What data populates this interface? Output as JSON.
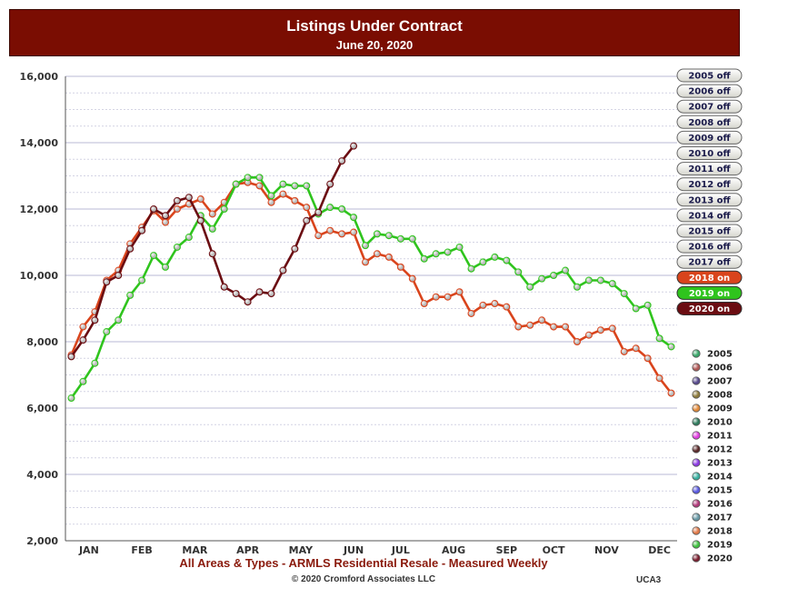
{
  "header": {
    "title": "Listings Under Contract",
    "subtitle": "June 20, 2020"
  },
  "footer": {
    "line1": "All Areas & Types - ARMLS Residential Resale - Measured Weekly",
    "line2": "© 2020 Cromford Associates LLC",
    "code": "UCA3"
  },
  "toggles": [
    {
      "label": "2005 off",
      "state": "off"
    },
    {
      "label": "2006 off",
      "state": "off"
    },
    {
      "label": "2007 off",
      "state": "off"
    },
    {
      "label": "2008 off",
      "state": "off"
    },
    {
      "label": "2009 off",
      "state": "off"
    },
    {
      "label": "2010 off",
      "state": "off"
    },
    {
      "label": "2011 off",
      "state": "off"
    },
    {
      "label": "2012 off",
      "state": "off"
    },
    {
      "label": "2013 off",
      "state": "off"
    },
    {
      "label": "2014 off",
      "state": "off"
    },
    {
      "label": "2015 off",
      "state": "off"
    },
    {
      "label": "2016 off",
      "state": "off"
    },
    {
      "label": "2017 off",
      "state": "off"
    },
    {
      "label": "2018 on",
      "state": "on",
      "color": "#d9441c"
    },
    {
      "label": "2019 on",
      "state": "on",
      "color": "#2fc41d"
    },
    {
      "label": "2020 on",
      "state": "on",
      "color": "#6b0d12"
    }
  ],
  "legend": [
    {
      "label": "2005",
      "color": "#3aa66a"
    },
    {
      "label": "2006",
      "color": "#b05a58"
    },
    {
      "label": "2007",
      "color": "#574a8c"
    },
    {
      "label": "2008",
      "color": "#8c7a3c"
    },
    {
      "label": "2009",
      "color": "#e08a3c"
    },
    {
      "label": "2010",
      "color": "#2f7a5c"
    },
    {
      "label": "2011",
      "color": "#e040e0"
    },
    {
      "label": "2012",
      "color": "#5a2a2a"
    },
    {
      "label": "2013",
      "color": "#8a3ae0"
    },
    {
      "label": "2014",
      "color": "#3ab0a0"
    },
    {
      "label": "2015",
      "color": "#5a5ae0"
    },
    {
      "label": "2016",
      "color": "#b03a7a"
    },
    {
      "label": "2017",
      "color": "#6a9aa6"
    },
    {
      "label": "2018",
      "color": "#e07a4a"
    },
    {
      "label": "2019",
      "color": "#40c040"
    },
    {
      "label": "2020",
      "color": "#7a2030"
    }
  ],
  "chart_data": {
    "type": "line",
    "ylim": [
      2000,
      16000
    ],
    "yticks": [
      2000,
      4000,
      6000,
      8000,
      10000,
      12000,
      14000,
      16000
    ],
    "ytick_labels": [
      "2,000",
      "4,000",
      "6,000",
      "8,000",
      "10,000",
      "12,000",
      "14,000",
      "16,000"
    ],
    "xlim": [
      1,
      52
    ],
    "months": [
      {
        "label": "JAN",
        "week": 2.5
      },
      {
        "label": "FEB",
        "week": 7
      },
      {
        "label": "MAR",
        "week": 11.5
      },
      {
        "label": "APR",
        "week": 16
      },
      {
        "label": "MAY",
        "week": 20.5
      },
      {
        "label": "JUN",
        "week": 25
      },
      {
        "label": "JUL",
        "week": 29
      },
      {
        "label": "AUG",
        "week": 33.5
      },
      {
        "label": "SEP",
        "week": 38
      },
      {
        "label": "OCT",
        "week": 42
      },
      {
        "label": "NOV",
        "week": 46.5
      },
      {
        "label": "DEC",
        "week": 51
      }
    ],
    "series": [
      {
        "name": "2018",
        "color": "#d9441c",
        "x": [
          1,
          2,
          3,
          4,
          5,
          6,
          7,
          8,
          9,
          10,
          11,
          12,
          13,
          14,
          15,
          16,
          17,
          18,
          19,
          20,
          21,
          22,
          23,
          24,
          25,
          26,
          27,
          28,
          29,
          30,
          31,
          32,
          33,
          34,
          35,
          36,
          37,
          38,
          39,
          40,
          41,
          42,
          43,
          44,
          45,
          46,
          47,
          48,
          49,
          50,
          51,
          52
        ],
        "values": [
          7600,
          8450,
          8900,
          9850,
          10150,
          10950,
          11450,
          11950,
          11600,
          12000,
          12150,
          12300,
          11850,
          12200,
          12750,
          12800,
          12700,
          12200,
          12450,
          12250,
          12050,
          11200,
          11350,
          11250,
          11300,
          10400,
          10650,
          10550,
          10250,
          9900,
          9150,
          9350,
          9350,
          9500,
          8850,
          9100,
          9150,
          9050,
          8450,
          8500,
          8650,
          8450,
          8450,
          8000,
          8200,
          8350,
          8400,
          7700,
          7800,
          7500,
          6900,
          6450
        ]
      },
      {
        "name": "2019",
        "color": "#2fc41d",
        "x": [
          1,
          2,
          3,
          4,
          5,
          6,
          7,
          8,
          9,
          10,
          11,
          12,
          13,
          14,
          15,
          16,
          17,
          18,
          19,
          20,
          21,
          22,
          23,
          24,
          25,
          26,
          27,
          28,
          29,
          30,
          31,
          32,
          33,
          34,
          35,
          36,
          37,
          38,
          39,
          40,
          41,
          42,
          43,
          44,
          45,
          46,
          47,
          48,
          49,
          50,
          51,
          52
        ],
        "values": [
          6300,
          6800,
          7350,
          8300,
          8650,
          9400,
          9850,
          10600,
          10250,
          10850,
          11150,
          11800,
          11400,
          12000,
          12750,
          12950,
          12950,
          12400,
          12750,
          12700,
          12700,
          11850,
          12050,
          12000,
          11750,
          10900,
          11250,
          11200,
          11100,
          11100,
          10500,
          10650,
          10700,
          10850,
          10200,
          10400,
          10550,
          10450,
          10100,
          9650,
          9900,
          10000,
          10150,
          9650,
          9850,
          9850,
          9750,
          9450,
          9000,
          9100,
          8100,
          7850
        ]
      },
      {
        "name": "2020",
        "color": "#6b0d12",
        "x": [
          1,
          2,
          3,
          4,
          5,
          6,
          7,
          8,
          9,
          10,
          11,
          12,
          13,
          14,
          15,
          16,
          17,
          18,
          19,
          20,
          21,
          22,
          23,
          24,
          25
        ],
        "values": [
          7550,
          8050,
          8650,
          9800,
          10000,
          10800,
          11350,
          12000,
          11800,
          12250,
          12350,
          11650,
          10650,
          9650,
          9450,
          9200,
          9500,
          9450,
          10150,
          10800,
          11650,
          11900,
          12750,
          13450,
          13900
        ]
      }
    ]
  }
}
